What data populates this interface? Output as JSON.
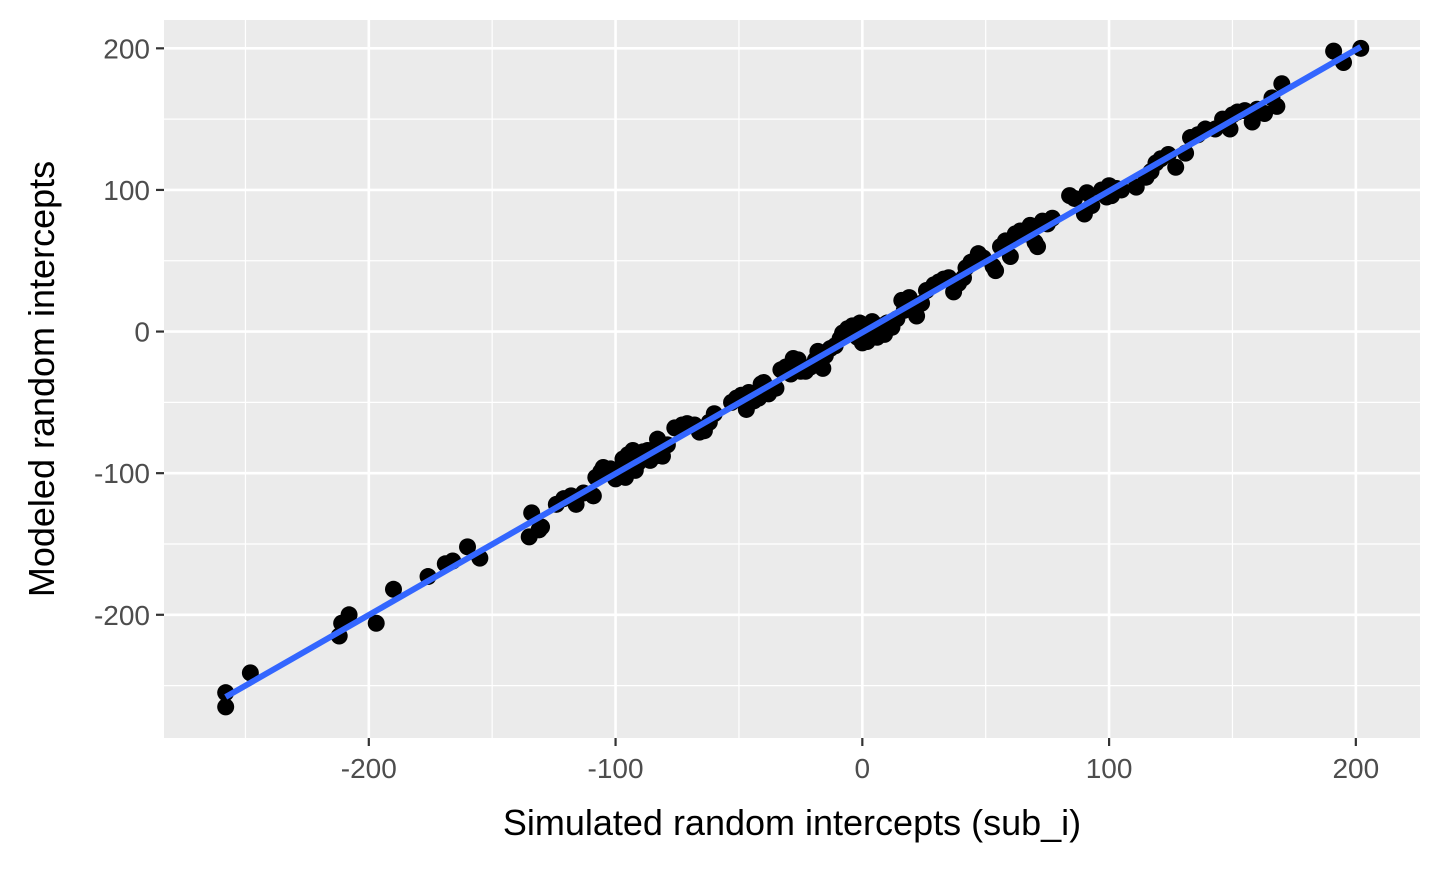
{
  "chart_data": {
    "type": "scatter",
    "title": "",
    "xlabel": "Simulated random intercepts (sub_i)",
    "ylabel": "Modeled random intercepts",
    "xlim": [
      -283,
      226
    ],
    "ylim": [
      -287,
      220
    ],
    "x_ticks": [
      -200,
      -100,
      0,
      100,
      200
    ],
    "x_tick_labels": [
      "-200",
      "-100",
      "0",
      "100",
      "200"
    ],
    "y_ticks": [
      -200,
      -100,
      0,
      100,
      200
    ],
    "y_tick_labels": [
      "-200",
      "-100",
      "0",
      "100",
      "200"
    ],
    "grid": true,
    "legend": "none",
    "colors": {
      "panel_background": "#ebebeb",
      "grid": "#ffffff",
      "points": "#000000",
      "fit_line": "#3366ff"
    },
    "series": [
      {
        "kind": "points",
        "points": [
          [
            -258,
            -255
          ],
          [
            -258,
            -265
          ],
          [
            -248,
            -241
          ],
          [
            -212,
            -215
          ],
          [
            -211,
            -206
          ],
          [
            -208,
            -200
          ],
          [
            -197,
            -206
          ],
          [
            -190,
            -182
          ],
          [
            -176,
            -173
          ],
          [
            -169,
            -164
          ],
          [
            -166,
            -162
          ],
          [
            -160,
            -152
          ],
          [
            -155,
            -160
          ],
          [
            -135,
            -145
          ],
          [
            -134,
            -128
          ],
          [
            -131,
            -140
          ],
          [
            -130,
            -138
          ],
          [
            -124,
            -122
          ],
          [
            -121,
            -118
          ],
          [
            -118,
            -116
          ],
          [
            -116,
            -122
          ],
          [
            -113,
            -114
          ],
          [
            -109,
            -116
          ],
          [
            -108,
            -103
          ],
          [
            -106,
            -99
          ],
          [
            -105,
            -96
          ],
          [
            -102,
            -97
          ],
          [
            -100,
            -104
          ],
          [
            -99,
            -100
          ],
          [
            -97,
            -90
          ],
          [
            -96,
            -103
          ],
          [
            -95,
            -87
          ],
          [
            -93,
            -84
          ],
          [
            -92,
            -98
          ],
          [
            -91,
            -93
          ],
          [
            -89,
            -85
          ],
          [
            -87,
            -84
          ],
          [
            -86,
            -91
          ],
          [
            -84,
            -88
          ],
          [
            -83,
            -76
          ],
          [
            -81,
            -88
          ],
          [
            -79,
            -80
          ],
          [
            -76,
            -68
          ],
          [
            -73,
            -66
          ],
          [
            -71,
            -65
          ],
          [
            -68,
            -66
          ],
          [
            -66,
            -71
          ],
          [
            -64,
            -70
          ],
          [
            -62,
            -64
          ],
          [
            -60,
            -58
          ],
          [
            -53,
            -50
          ],
          [
            -51,
            -47
          ],
          [
            -49,
            -45
          ],
          [
            -47,
            -55
          ],
          [
            -46,
            -43
          ],
          [
            -44,
            -49
          ],
          [
            -42,
            -47
          ],
          [
            -41,
            -37
          ],
          [
            -40,
            -36
          ],
          [
            -38,
            -44
          ],
          [
            -35,
            -40
          ],
          [
            -33,
            -27
          ],
          [
            -31,
            -25
          ],
          [
            -29,
            -30
          ],
          [
            -28,
            -19
          ],
          [
            -26,
            -20
          ],
          [
            -25,
            -28
          ],
          [
            -23,
            -28
          ],
          [
            -21,
            -25
          ],
          [
            -19,
            -20
          ],
          [
            -18,
            -14
          ],
          [
            -16,
            -26
          ],
          [
            -15,
            -17
          ],
          [
            -13,
            -12
          ],
          [
            -11,
            -10
          ],
          [
            -9,
            -5
          ],
          [
            -8,
            -1
          ],
          [
            -6,
            2
          ],
          [
            -4,
            4
          ],
          [
            -2,
            -4
          ],
          [
            -1,
            6
          ],
          [
            0,
            -8
          ],
          [
            2,
            -7
          ],
          [
            3,
            3
          ],
          [
            4,
            7
          ],
          [
            6,
            -4
          ],
          [
            7,
            4
          ],
          [
            9,
            -2
          ],
          [
            10,
            6
          ],
          [
            12,
            3
          ],
          [
            14,
            9
          ],
          [
            16,
            22
          ],
          [
            17,
            15
          ],
          [
            19,
            24
          ],
          [
            21,
            18
          ],
          [
            22,
            11
          ],
          [
            24,
            20
          ],
          [
            26,
            29
          ],
          [
            29,
            33
          ],
          [
            31,
            35
          ],
          [
            33,
            37
          ],
          [
            35,
            38
          ],
          [
            37,
            28
          ],
          [
            39,
            34
          ],
          [
            41,
            38
          ],
          [
            42,
            45
          ],
          [
            44,
            49
          ],
          [
            47,
            55
          ],
          [
            49,
            52
          ],
          [
            53,
            46
          ],
          [
            54,
            43
          ],
          [
            56,
            60
          ],
          [
            58,
            64
          ],
          [
            60,
            53
          ],
          [
            62,
            69
          ],
          [
            64,
            71
          ],
          [
            66,
            69
          ],
          [
            68,
            75
          ],
          [
            70,
            63
          ],
          [
            71,
            60
          ],
          [
            73,
            78
          ],
          [
            75,
            76
          ],
          [
            77,
            80
          ],
          [
            84,
            96
          ],
          [
            86,
            94
          ],
          [
            90,
            83
          ],
          [
            91,
            98
          ],
          [
            93,
            89
          ],
          [
            97,
            100
          ],
          [
            99,
            95
          ],
          [
            100,
            103
          ],
          [
            101,
            96
          ],
          [
            103,
            101
          ],
          [
            105,
            100
          ],
          [
            111,
            102
          ],
          [
            115,
            109
          ],
          [
            117,
            113
          ],
          [
            119,
            119
          ],
          [
            121,
            122
          ],
          [
            124,
            125
          ],
          [
            127,
            116
          ],
          [
            131,
            126
          ],
          [
            133,
            137
          ],
          [
            136,
            139
          ],
          [
            139,
            143
          ],
          [
            143,
            143
          ],
          [
            146,
            150
          ],
          [
            148,
            148
          ],
          [
            149,
            143
          ],
          [
            150,
            153
          ],
          [
            152,
            155
          ],
          [
            155,
            156
          ],
          [
            158,
            148
          ],
          [
            160,
            157
          ],
          [
            163,
            154
          ],
          [
            166,
            165
          ],
          [
            168,
            159
          ],
          [
            170,
            175
          ],
          [
            191,
            198
          ],
          [
            195,
            190
          ],
          [
            202,
            200
          ]
        ]
      },
      {
        "kind": "fit_line",
        "from": [
          -258,
          -258
        ],
        "to": [
          202,
          201
        ]
      }
    ]
  }
}
